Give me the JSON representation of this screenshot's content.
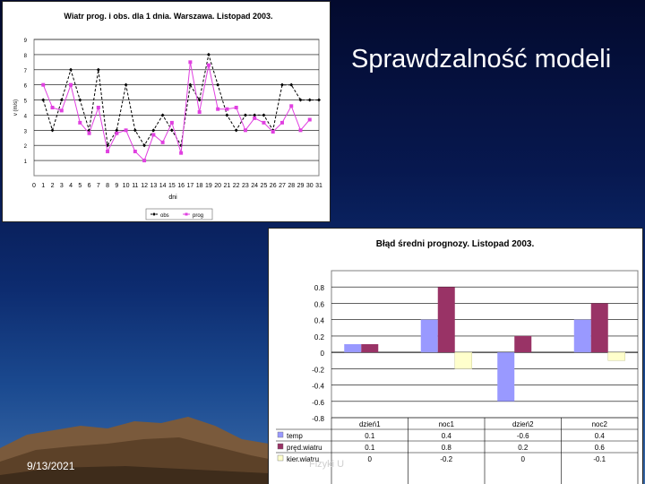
{
  "slide": {
    "title": "Sprawdzalność modeli",
    "date": "9/13/2021",
    "footer": "Fizyki U"
  },
  "chart_data": [
    {
      "type": "line",
      "title": "Wiatr prog. i obs. dla 1 dnia. Warszawa. Listopad 2003.",
      "xlabel": "dni",
      "ylabel": "v (m/s)",
      "ylim": [
        0,
        9
      ],
      "xlim": [
        0,
        31
      ],
      "x_ticks": [
        0,
        1,
        2,
        3,
        4,
        5,
        6,
        7,
        8,
        9,
        10,
        11,
        12,
        13,
        14,
        15,
        16,
        17,
        18,
        19,
        20,
        21,
        22,
        23,
        24,
        25,
        26,
        27,
        28,
        29,
        30,
        31
      ],
      "y_ticks": [
        1,
        2,
        3,
        4,
        5,
        6,
        7,
        8,
        9
      ],
      "grid": true,
      "legend": "bottom",
      "series": [
        {
          "name": "obs",
          "color": "#000000",
          "marker": "diamond",
          "dashed": true,
          "x": [
            1,
            2,
            3,
            4,
            5,
            6,
            7,
            8,
            9,
            10,
            11,
            12,
            13,
            14,
            15,
            16,
            17,
            18,
            19,
            20,
            21,
            22,
            23,
            24,
            25,
            26,
            27,
            28,
            29,
            30,
            31
          ],
          "values": [
            5,
            3,
            5,
            7,
            5,
            3,
            7,
            2,
            3,
            6,
            3,
            2,
            3,
            4,
            3,
            2,
            6,
            5,
            8,
            6,
            4,
            3,
            4,
            4,
            4,
            3,
            6,
            6,
            5,
            5,
            5
          ]
        },
        {
          "name": "prog",
          "color": "#e040e0",
          "marker": "square",
          "dashed": false,
          "x": [
            1,
            2,
            3,
            4,
            5,
            6,
            7,
            8,
            9,
            10,
            11,
            12,
            13,
            14,
            15,
            16,
            17,
            18,
            19,
            20,
            21,
            22,
            23,
            24,
            25,
            26,
            27,
            28,
            29,
            30,
            31
          ],
          "values": [
            6,
            4.5,
            4.3,
            6,
            3.5,
            2.8,
            4.5,
            1.6,
            2.8,
            3,
            1.6,
            1,
            2.7,
            2.2,
            3.5,
            1.5,
            7.5,
            4.2,
            7.3,
            4.4,
            4.4,
            4.5,
            3,
            3.8,
            3.5,
            2.9,
            3.5,
            4.6,
            3,
            3.7,
            null
          ]
        }
      ]
    },
    {
      "type": "bar",
      "title": "Błąd średni prognozy. Listopad 2003.",
      "ylim": [
        -0.8,
        1
      ],
      "y_ticks": [
        0.8,
        0.6,
        0.4,
        0.2,
        0,
        -0.2,
        -0.4,
        -0.6,
        -0.8
      ],
      "grid": true,
      "categories": [
        "dzień1",
        "noc1",
        "dzień2",
        "noc2"
      ],
      "series": [
        {
          "name": "temp",
          "color": "#9999ff",
          "values": [
            0.1,
            0.4,
            -0.6,
            0.4
          ]
        },
        {
          "name": "pręd.wiatru",
          "color": "#993366",
          "values": [
            0.1,
            0.8,
            0.2,
            0.6
          ]
        },
        {
          "name": "kier.wiatru",
          "color": "#ffffcc",
          "values": [
            0,
            -0.2,
            0,
            -0.1
          ]
        }
      ],
      "table": {
        "headers": [
          "dzień1",
          "noc1",
          "dzień2",
          "noc2"
        ],
        "rows": [
          {
            "label": "temp",
            "cells": [
              "0.1",
              "0.4",
              "-0.6",
              "0.4"
            ]
          },
          {
            "label": "pręd.wiatru",
            "cells": [
              "0.1",
              "0.8",
              "0.2",
              "0.6"
            ]
          },
          {
            "label": "kier.wiatru",
            "cells": [
              "0",
              "-0.2",
              "0",
              "-0.1"
            ]
          }
        ]
      }
    }
  ]
}
